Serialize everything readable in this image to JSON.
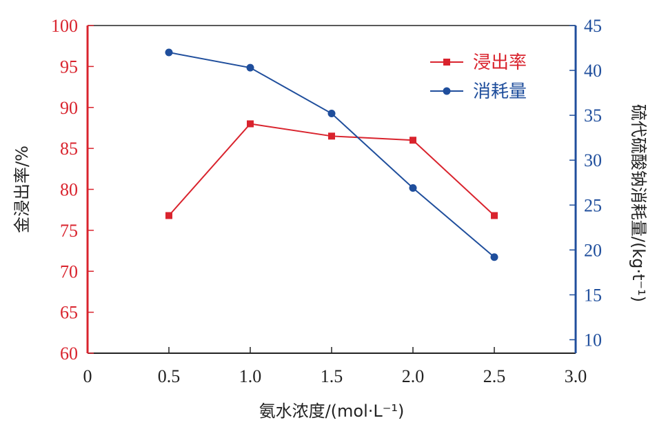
{
  "chart_data": {
    "type": "line",
    "x": [
      0.5,
      1.0,
      1.5,
      2.0,
      2.5
    ],
    "xlabel": "氨水浓度/(mol·L⁻¹)",
    "xlim": [
      0,
      3.0
    ],
    "x_ticks": [
      "0",
      "0.5",
      "1.0",
      "1.5",
      "2.0",
      "2.5",
      "3.0"
    ],
    "x_tick_values": [
      0,
      0.5,
      1.0,
      1.5,
      2.0,
      2.5,
      3.0
    ],
    "ylabel_left": "金浸出率/%",
    "ylim_left": [
      60,
      100
    ],
    "y_ticks_left": [
      "60",
      "65",
      "70",
      "75",
      "80",
      "85",
      "90",
      "95",
      "100"
    ],
    "y_tick_values_left": [
      60,
      65,
      70,
      75,
      80,
      85,
      90,
      95,
      100
    ],
    "ylabel_right": "硫代硫酸钠消耗量/(kg·t⁻¹)",
    "ylim_right": [
      8.5,
      45
    ],
    "y_ticks_right": [
      "10",
      "15",
      "20",
      "25",
      "30",
      "35",
      "40",
      "45"
    ],
    "y_tick_values_right": [
      10,
      15,
      20,
      25,
      30,
      35,
      40,
      45
    ],
    "series": [
      {
        "name": "浸出率",
        "axis": "left",
        "marker": "square",
        "color": "#d9232d",
        "values": [
          76.8,
          88.0,
          86.5,
          86.0,
          76.8
        ]
      },
      {
        "name": "消耗量",
        "axis": "right",
        "marker": "circle",
        "color": "#1f4e9c",
        "values": [
          42.0,
          40.3,
          35.2,
          26.9,
          19.2
        ]
      }
    ],
    "legend_position": "top-right",
    "grid": false
  }
}
